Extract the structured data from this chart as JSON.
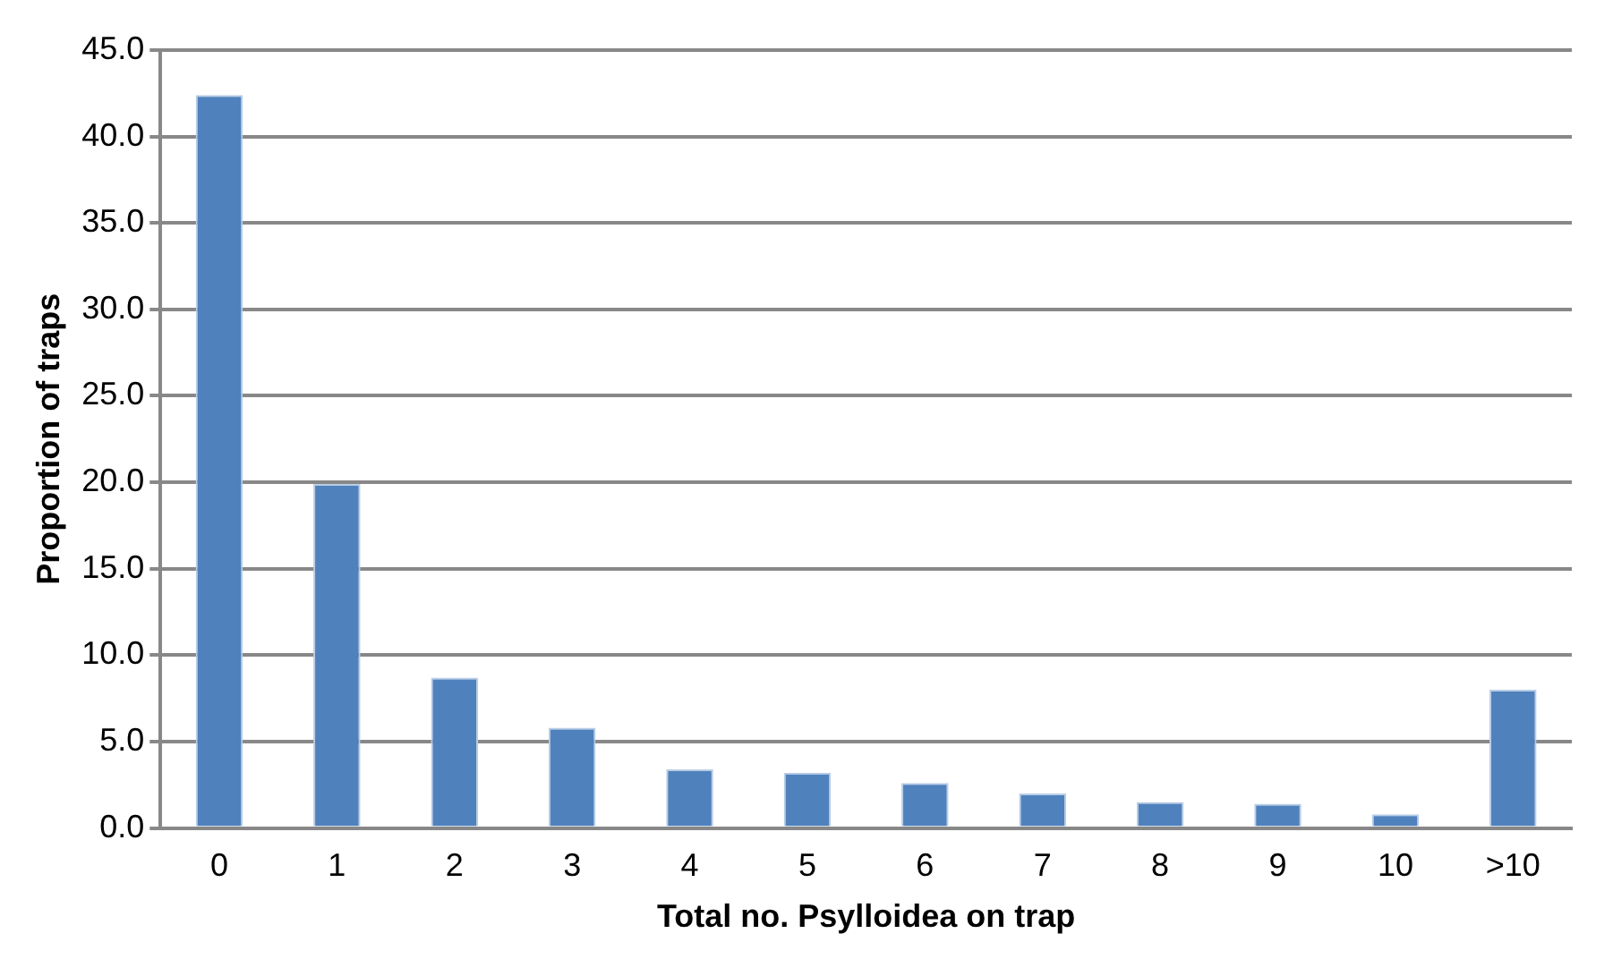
{
  "chart_data": {
    "type": "bar",
    "xlabel": "Total no. Psylloidea on trap",
    "ylabel": "Proportion of traps",
    "categories": [
      "0",
      "1",
      "2",
      "3",
      "4",
      "5",
      "6",
      "7",
      "8",
      "9",
      "10",
      ">10"
    ],
    "values": [
      42.4,
      19.9,
      8.7,
      5.8,
      3.4,
      3.2,
      2.6,
      2.0,
      1.5,
      1.4,
      0.8,
      8.0
    ],
    "color": "#4f81bd",
    "ylim": [
      0,
      45
    ],
    "yticks": [
      {
        "value": 0,
        "label": "0.0"
      },
      {
        "value": 5,
        "label": "5.0"
      },
      {
        "value": 10,
        "label": "10.0"
      },
      {
        "value": 15,
        "label": "15.0"
      },
      {
        "value": 20,
        "label": "20.0"
      },
      {
        "value": 25,
        "label": "25.0"
      },
      {
        "value": 30,
        "label": "30.0"
      },
      {
        "value": 35,
        "label": "35.0"
      },
      {
        "value": 40,
        "label": "40.0"
      },
      {
        "value": 45,
        "label": "45.0"
      }
    ],
    "grid": "y",
    "legend": false
  }
}
